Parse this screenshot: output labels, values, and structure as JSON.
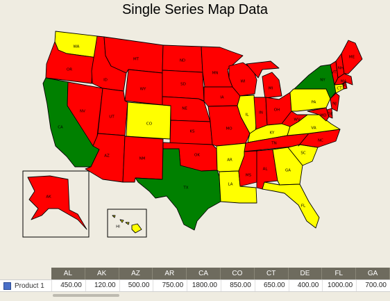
{
  "title": "Single Series Map Data",
  "colors": {
    "red": "#ff0000",
    "yellow": "#ffff00",
    "green": "#008000",
    "series": "#4a6fc7"
  },
  "states": [
    {
      "code": "WA",
      "fill": "yellow"
    },
    {
      "code": "OR",
      "fill": "red"
    },
    {
      "code": "CA",
      "fill": "green"
    },
    {
      "code": "NV",
      "fill": "red"
    },
    {
      "code": "ID",
      "fill": "red"
    },
    {
      "code": "MT",
      "fill": "red"
    },
    {
      "code": "WY",
      "fill": "red"
    },
    {
      "code": "UT",
      "fill": "red"
    },
    {
      "code": "AZ",
      "fill": "red"
    },
    {
      "code": "CO",
      "fill": "yellow"
    },
    {
      "code": "NM",
      "fill": "red"
    },
    {
      "code": "ND",
      "fill": "red"
    },
    {
      "code": "SD",
      "fill": "red"
    },
    {
      "code": "NE",
      "fill": "red"
    },
    {
      "code": "KS",
      "fill": "red"
    },
    {
      "code": "OK",
      "fill": "red"
    },
    {
      "code": "TX",
      "fill": "green"
    },
    {
      "code": "MN",
      "fill": "red"
    },
    {
      "code": "IA",
      "fill": "red"
    },
    {
      "code": "MO",
      "fill": "red"
    },
    {
      "code": "AR",
      "fill": "yellow"
    },
    {
      "code": "LA",
      "fill": "yellow"
    },
    {
      "code": "WI",
      "fill": "red"
    },
    {
      "code": "IL",
      "fill": "yellow"
    },
    {
      "code": "MI",
      "fill": "red"
    },
    {
      "code": "IN",
      "fill": "red"
    },
    {
      "code": "OH",
      "fill": "red"
    },
    {
      "code": "KY",
      "fill": "yellow"
    },
    {
      "code": "TN",
      "fill": "red"
    },
    {
      "code": "MS",
      "fill": "red"
    },
    {
      "code": "AL",
      "fill": "red"
    },
    {
      "code": "GA",
      "fill": "yellow"
    },
    {
      "code": "FL",
      "fill": "yellow"
    },
    {
      "code": "SC",
      "fill": "yellow"
    },
    {
      "code": "NC",
      "fill": "red"
    },
    {
      "code": "VA",
      "fill": "yellow"
    },
    {
      "code": "WV",
      "fill": "red"
    },
    {
      "code": "PA",
      "fill": "yellow"
    },
    {
      "code": "NY",
      "fill": "green"
    },
    {
      "code": "VT",
      "fill": "red"
    },
    {
      "code": "NH",
      "fill": "red"
    },
    {
      "code": "ME",
      "fill": "red"
    },
    {
      "code": "MA",
      "fill": "red"
    },
    {
      "code": "RI",
      "fill": "red"
    },
    {
      "code": "CT",
      "fill": "yellow"
    },
    {
      "code": "NJ",
      "fill": "red"
    },
    {
      "code": "DE",
      "fill": "red"
    },
    {
      "code": "MD",
      "fill": "red"
    },
    {
      "code": "AK",
      "fill": "red"
    },
    {
      "code": "HI",
      "fill": "yellow"
    }
  ],
  "table": {
    "row_label": "Product 1",
    "columns": [
      "AL",
      "AK",
      "AZ",
      "AR",
      "CA",
      "CO",
      "CT",
      "DE",
      "FL",
      "GA"
    ],
    "values": [
      "450.00",
      "120.00",
      "500.00",
      "750.00",
      "1800.00",
      "850.00",
      "650.00",
      "400.00",
      "1000.00",
      "700.00"
    ]
  }
}
